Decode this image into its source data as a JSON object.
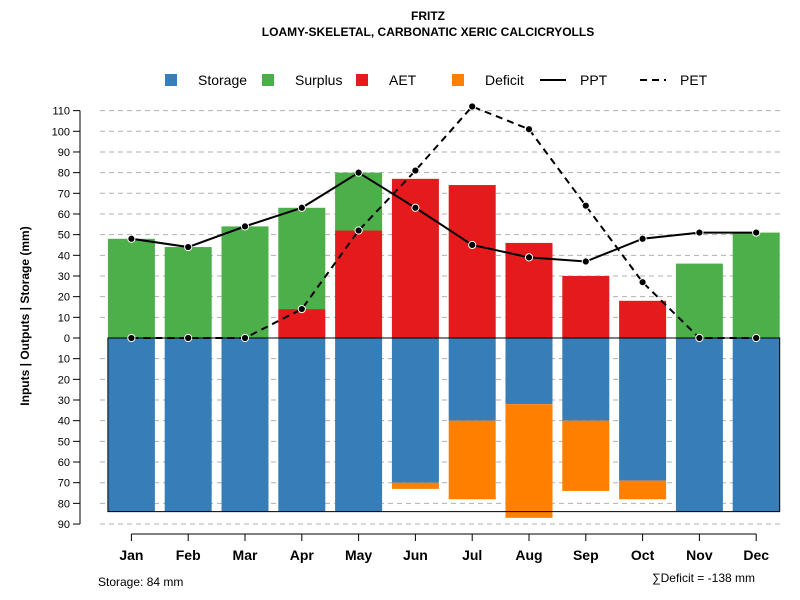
{
  "chart_data": {
    "type": "bar",
    "title": "FRITZ",
    "subtitle": "LOAMY-SKELETAL, CARBONATIC XERIC CALCICRYOLLS",
    "ylabel": "Inputs | Outputs | Storage    (mm)",
    "categories": [
      "Jan",
      "Feb",
      "Mar",
      "Apr",
      "May",
      "Jun",
      "Jul",
      "Aug",
      "Sep",
      "Oct",
      "Nov",
      "Dec"
    ],
    "ylim": [
      -90,
      110
    ],
    "yticks": [
      -90,
      -80,
      -70,
      -60,
      -50,
      -40,
      -30,
      -20,
      -10,
      0,
      10,
      20,
      30,
      40,
      50,
      60,
      70,
      80,
      90,
      100,
      110
    ],
    "ytick_labels": [
      "90",
      "80",
      "70",
      "60",
      "50",
      "40",
      "30",
      "20",
      "10",
      "0",
      "10",
      "20",
      "30",
      "40",
      "50",
      "60",
      "70",
      "80",
      "90",
      "100",
      "110"
    ],
    "grid": true,
    "legend": [
      {
        "name": "Storage",
        "kind": "box",
        "color": "#377EB8"
      },
      {
        "name": "Surplus",
        "kind": "box",
        "color": "#4DAF4A"
      },
      {
        "name": "AET",
        "kind": "box",
        "color": "#E41A1C"
      },
      {
        "name": "Deficit",
        "kind": "box",
        "color": "#FF7F00"
      },
      {
        "name": "PPT",
        "kind": "solid-line",
        "color": "#000000"
      },
      {
        "name": "PET",
        "kind": "dashed-line",
        "color": "#000000"
      }
    ],
    "series": [
      {
        "name": "Surplus",
        "values": [
          48,
          44,
          54,
          49,
          28,
          0,
          0,
          0,
          0,
          0,
          36,
          51
        ]
      },
      {
        "name": "AET",
        "values": [
          0,
          0,
          0,
          14,
          52,
          77,
          74,
          46,
          30,
          18,
          0,
          0
        ]
      },
      {
        "name": "Storage",
        "values": [
          84,
          84,
          84,
          84,
          84,
          70,
          40,
          32,
          40,
          69,
          84,
          84
        ]
      },
      {
        "name": "Deficit",
        "values": [
          0,
          0,
          0,
          0,
          0,
          3,
          38,
          55,
          34,
          9,
          0,
          0
        ]
      },
      {
        "name": "PPT",
        "values": [
          48,
          44,
          54,
          63,
          80,
          63,
          45,
          39,
          37,
          48,
          51,
          51
        ]
      },
      {
        "name": "PET",
        "values": [
          0,
          0,
          0,
          14,
          52,
          81,
          112,
          101,
          64,
          27,
          0,
          0
        ]
      }
    ],
    "colors": {
      "Storage": "#377EB8",
      "Surplus": "#4DAF4A",
      "AET": "#E41A1C",
      "Deficit": "#FF7F00"
    },
    "storage_capacity": 84,
    "storage_note": "Storage: 84 mm",
    "deficit_note": "∑Deficit = -138 mm"
  }
}
